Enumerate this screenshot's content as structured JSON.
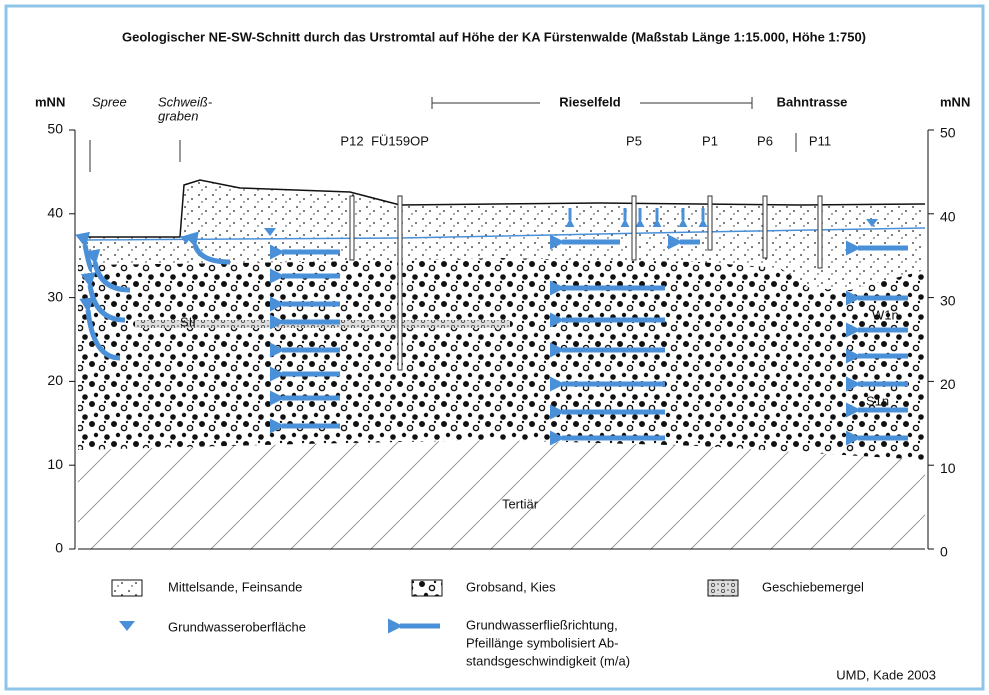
{
  "title": "Geologischer NE-SW-Schnitt durch das Urstromtal auf Höhe der KA Fürstenwalde (Maßstab Länge 1:15.000, Höhe 1:750)",
  "axis": {
    "unit": "mNN",
    "range": [
      0,
      50
    ],
    "ticks": [
      0,
      10,
      20,
      30,
      40,
      50
    ]
  },
  "places": {
    "spree": "Spree",
    "graben": [
      "Schweiß-",
      "graben"
    ],
    "rieselfeld": "Rieselfeld",
    "bahntrasse": "Bahntrasse"
  },
  "wells": [
    "P12",
    "FÜ159OP",
    "P5",
    "P1",
    "P6",
    "P11"
  ],
  "layers": {
    "sii": "SII",
    "w1n": "W1n",
    "s1n": "S1n",
    "tertiaer": "Tertiär"
  },
  "legend": {
    "fine": "Mittelsande, Feinsande",
    "coarse": "Grobsand, Kies",
    "till": "Geschiebemergel",
    "water_table": "Grundwasseroberfläche",
    "flow": [
      "Grundwasserfließrichtung,",
      "Pfeillänge symbolisiert Ab-",
      "standsgeschwindigkeit (m/a)"
    ]
  },
  "credit": "UMD, Kade 2003"
}
